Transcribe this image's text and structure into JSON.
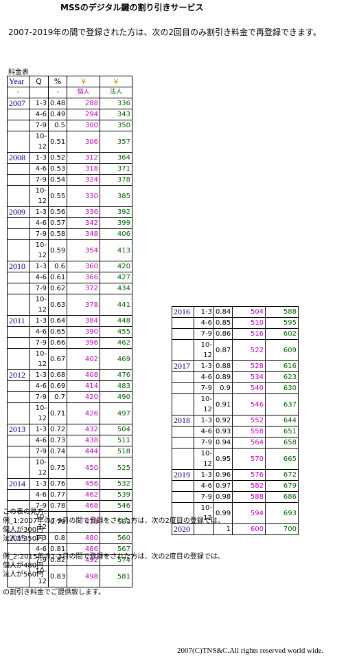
{
  "header": {
    "title": "MSSのデジタル鍵の割り引きサービス",
    "intro": "2007-2019年の間で登録された方は、次の2回目のみ割引き料金で再登録できます。"
  },
  "table": {
    "caption": "料金表",
    "columns": [
      {
        "top": "Year",
        "sub": "-"
      },
      {
        "top": "Q"
      },
      {
        "top": "%",
        "sub": "-"
      },
      {
        "top": "￥",
        "sub": "個人"
      },
      {
        "top": "￥",
        "sub": "法人"
      }
    ],
    "left": [
      {
        "year": "2007",
        "rows": [
          {
            "q": "1-3",
            "pct": 0.48,
            "personal": 288,
            "corporate": 336
          },
          {
            "q": "4-6",
            "pct": 0.49,
            "personal": 294,
            "corporate": 343
          },
          {
            "q": "7-9",
            "pct": 0.5,
            "personal": 300,
            "corporate": 350
          },
          {
            "q": "10-12",
            "pct": 0.51,
            "personal": 306,
            "corporate": 357
          }
        ]
      },
      {
        "year": "2008",
        "rows": [
          {
            "q": "1-3",
            "pct": 0.52,
            "personal": 312,
            "corporate": 364
          },
          {
            "q": "4-6",
            "pct": 0.53,
            "personal": 318,
            "corporate": 371
          },
          {
            "q": "7-9",
            "pct": 0.54,
            "personal": 324,
            "corporate": 378
          },
          {
            "q": "10-12",
            "pct": 0.55,
            "personal": 330,
            "corporate": 385
          }
        ]
      },
      {
        "year": "2009",
        "rows": [
          {
            "q": "1-3",
            "pct": 0.56,
            "personal": 336,
            "corporate": 392
          },
          {
            "q": "4-6",
            "pct": 0.57,
            "personal": 342,
            "corporate": 399
          },
          {
            "q": "7-9",
            "pct": 0.58,
            "personal": 348,
            "corporate": 406
          },
          {
            "q": "10-12",
            "pct": 0.59,
            "personal": 354,
            "corporate": 413
          }
        ]
      },
      {
        "year": "2010",
        "rows": [
          {
            "q": "1-3",
            "pct": 0.6,
            "personal": 360,
            "corporate": 420
          },
          {
            "q": "4-6",
            "pct": 0.61,
            "personal": 366,
            "corporate": 427
          },
          {
            "q": "7-9",
            "pct": 0.62,
            "personal": 372,
            "corporate": 434
          },
          {
            "q": "10-12",
            "pct": 0.63,
            "personal": 378,
            "corporate": 441
          }
        ]
      },
      {
        "year": "2011",
        "rows": [
          {
            "q": "1-3",
            "pct": 0.64,
            "personal": 384,
            "corporate": 448
          },
          {
            "q": "4-6",
            "pct": 0.65,
            "personal": 390,
            "corporate": 455
          },
          {
            "q": "7-9",
            "pct": 0.66,
            "personal": 396,
            "corporate": 462
          },
          {
            "q": "10-12",
            "pct": 0.67,
            "personal": 402,
            "corporate": 469
          }
        ]
      },
      {
        "year": "2012",
        "rows": [
          {
            "q": "1-3",
            "pct": 0.68,
            "personal": 408,
            "corporate": 476
          },
          {
            "q": "4-6",
            "pct": 0.69,
            "personal": 414,
            "corporate": 483
          },
          {
            "q": "7-9",
            "pct": 0.7,
            "personal": 420,
            "corporate": 490
          },
          {
            "q": "10-12",
            "pct": 0.71,
            "personal": 426,
            "corporate": 497
          }
        ]
      },
      {
        "year": "2013",
        "rows": [
          {
            "q": "1-3",
            "pct": 0.72,
            "personal": 432,
            "corporate": 504
          },
          {
            "q": "4-6",
            "pct": 0.73,
            "personal": 438,
            "corporate": 511
          },
          {
            "q": "7-9",
            "pct": 0.74,
            "personal": 444,
            "corporate": 518
          },
          {
            "q": "10-12",
            "pct": 0.75,
            "personal": 450,
            "corporate": 525
          }
        ]
      },
      {
        "year": "2014",
        "rows": [
          {
            "q": "1-3",
            "pct": 0.76,
            "personal": 456,
            "corporate": 532
          },
          {
            "q": "4-6",
            "pct": 0.77,
            "personal": 462,
            "corporate": 539
          },
          {
            "q": "7-9",
            "pct": 0.78,
            "personal": 468,
            "corporate": 546
          },
          {
            "q": "10-12",
            "pct": 0.79,
            "personal": 474,
            "corporate": 553
          }
        ]
      },
      {
        "year": "2015",
        "rows": [
          {
            "q": "1-3",
            "pct": 0.8,
            "personal": 480,
            "corporate": 560
          },
          {
            "q": "4-6",
            "pct": 0.81,
            "personal": 486,
            "corporate": 567
          },
          {
            "q": "7-9",
            "pct": 0.82,
            "personal": 492,
            "corporate": 574
          },
          {
            "q": "10-12",
            "pct": 0.83,
            "personal": 498,
            "corporate": 581
          }
        ]
      }
    ],
    "right": [
      {
        "year": "2016",
        "rows": [
          {
            "q": "1-3",
            "pct": 0.84,
            "personal": 504,
            "corporate": 588
          },
          {
            "q": "4-6",
            "pct": 0.85,
            "personal": 510,
            "corporate": 595
          },
          {
            "q": "7-9",
            "pct": 0.86,
            "personal": 516,
            "corporate": 602
          },
          {
            "q": "10-12",
            "pct": 0.87,
            "personal": 522,
            "corporate": 609
          }
        ]
      },
      {
        "year": "2017",
        "rows": [
          {
            "q": "1-3",
            "pct": 0.88,
            "personal": 528,
            "corporate": 616
          },
          {
            "q": "4-6",
            "pct": 0.89,
            "personal": 534,
            "corporate": 623
          },
          {
            "q": "7-9",
            "pct": 0.9,
            "personal": 540,
            "corporate": 630
          },
          {
            "q": "10-12",
            "pct": 0.91,
            "personal": 546,
            "corporate": 637
          }
        ]
      },
      {
        "year": "2018",
        "rows": [
          {
            "q": "1-3",
            "pct": 0.92,
            "personal": 552,
            "corporate": 644
          },
          {
            "q": "4-6",
            "pct": 0.93,
            "personal": 558,
            "corporate": 651
          },
          {
            "q": "7-9",
            "pct": 0.94,
            "personal": 564,
            "corporate": 658
          },
          {
            "q": "10-12",
            "pct": 0.95,
            "personal": 570,
            "corporate": 665
          }
        ]
      },
      {
        "year": "2019",
        "rows": [
          {
            "q": "1-3",
            "pct": 0.96,
            "personal": 576,
            "corporate": 672
          },
          {
            "q": "4-6",
            "pct": 0.97,
            "personal": 582,
            "corporate": 679
          },
          {
            "q": "7-9",
            "pct": 0.98,
            "personal": 588,
            "corporate": 686
          },
          {
            "q": "10-12",
            "pct": 0.99,
            "personal": 594,
            "corporate": 693
          }
        ]
      },
      {
        "year": "2020",
        "rows": [
          {
            "pct": 1,
            "personal": 600,
            "corporate": 700
          }
        ]
      }
    ]
  },
  "notes": [
    "この表の見方:",
    "例_1:2007年の7-9月の間で登録をされた方は、次の2度目の登録では、",
    "個人が300円",
    "法人が350円",
    "例_2:2015年の1-3月の間で登録をされた方は、次の2度目の登録では、",
    "個人が480円",
    "法人が560円",
    "の割引き料金でご提供致します。"
  ],
  "footer": "2007(C)TNS&C.All rights reserved world wide."
}
